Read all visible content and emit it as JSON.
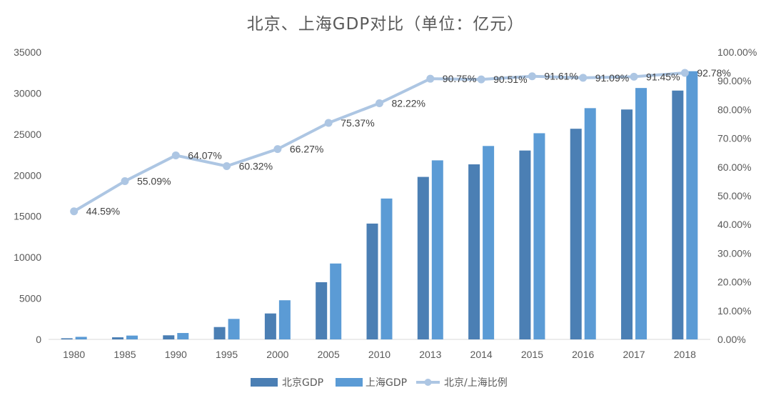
{
  "chart_data": {
    "type": "bar",
    "title": "北京、上海GDP对比（单位：亿元）",
    "categories": [
      "1980",
      "1985",
      "1990",
      "1995",
      "2000",
      "2005",
      "2010",
      "2013",
      "2014",
      "2015",
      "2016",
      "2017",
      "2018"
    ],
    "series": [
      {
        "name": "北京GDP",
        "type": "bar",
        "axis": "left",
        "color": "#4b7fb4",
        "values": [
          139,
          257,
          500,
          1507,
          3162,
          6970,
          14114,
          19801,
          21331,
          23015,
          25669,
          28015,
          30320
        ]
      },
      {
        "name": "上海GDP",
        "type": "bar",
        "axis": "left",
        "color": "#5b9bd5",
        "values": [
          312,
          467,
          781,
          2499,
          4771,
          9248,
          17166,
          21818,
          23568,
          25123,
          28179,
          30633,
          32680
        ]
      },
      {
        "name": "北京/上海比例",
        "type": "line",
        "axis": "right",
        "color": "#adc6e3",
        "values": [
          44.59,
          55.09,
          64.07,
          60.32,
          66.27,
          75.37,
          82.22,
          90.75,
          90.51,
          91.61,
          91.09,
          91.45,
          92.78
        ],
        "labels": [
          "44.59%",
          "55.09%",
          "64.07%",
          "60.32%",
          "66.27%",
          "75.37%",
          "82.22%",
          "90.75%",
          "90.51%",
          "91.61%",
          "91.09%",
          "91.45%",
          "92.78%"
        ]
      }
    ],
    "ylim": [
      0,
      35000
    ],
    "yticks": [
      "0",
      "5000",
      "10000",
      "15000",
      "20000",
      "25000",
      "30000",
      "35000"
    ],
    "y2lim": [
      0,
      100
    ],
    "y2ticks": [
      "0.00%",
      "10.00%",
      "20.00%",
      "30.00%",
      "40.00%",
      "50.00%",
      "60.00%",
      "70.00%",
      "80.00%",
      "90.00%",
      "100.00%"
    ],
    "grid": false,
    "legend_position": "bottom"
  }
}
